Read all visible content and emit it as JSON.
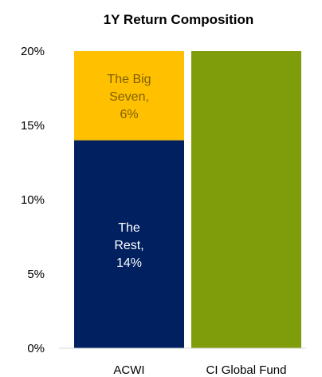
{
  "chart_data": {
    "type": "bar",
    "stacked": true,
    "title": "1Y Return Composition",
    "xlabel": "",
    "ylabel": "",
    "ylim": [
      0,
      20
    ],
    "y_ticks": [
      "0%",
      "5%",
      "10%",
      "15%",
      "20%"
    ],
    "categories": [
      "ACWI",
      "CI Global Fund"
    ],
    "grid": false,
    "legend": "none",
    "series": [
      {
        "key": "rest",
        "values": [
          14,
          0
        ],
        "color": "#002060",
        "label_color": "#ffffff",
        "labels": [
          [
            "The",
            "Rest,",
            "14%"
          ],
          []
        ]
      },
      {
        "key": "big7",
        "values": [
          6,
          0
        ],
        "color": "#ffc000",
        "label_color": "#7f6000",
        "labels": [
          [
            "The Big",
            "Seven,",
            "6%"
          ],
          []
        ]
      },
      {
        "key": "fund",
        "values": [
          0,
          20
        ],
        "color": "#7f9c0a",
        "label_color": "#ffffff",
        "labels": [
          [],
          []
        ]
      }
    ]
  }
}
